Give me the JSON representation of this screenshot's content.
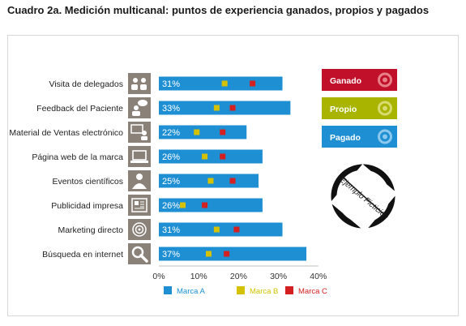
{
  "title": "Cuadro 2a. Medición multicanal: puntos de experiencia ganados, propios y pagados",
  "chart_data": {
    "type": "bar",
    "orientation": "horizontal",
    "categories": [
      "Visita de delegados",
      "Feedback del Paciente",
      "Material de Ventas electrónico",
      "Página web de la marca",
      "Eventos científicos",
      "Publicidad impresa",
      "Marketing directo",
      "Búsqueda en internet"
    ],
    "category_icons": [
      "people-icon",
      "speech-person-icon",
      "presenter-icon",
      "laptop-icon",
      "person-icon",
      "newspaper-icon",
      "target-icon",
      "magnifier-icon"
    ],
    "series": [
      {
        "name": "Marca A",
        "values": [
          31,
          33,
          22,
          26,
          25,
          26,
          31,
          37
        ],
        "color": "#1e8fd2"
      },
      {
        "name": "Marca B",
        "values": [
          16.5,
          14.5,
          9.5,
          11.5,
          13,
          6,
          14.5,
          12.5
        ],
        "color": "#d4c200"
      },
      {
        "name": "Marca C",
        "values": [
          23.5,
          18.5,
          16,
          16,
          18.5,
          11.5,
          19.5,
          17
        ],
        "color": "#d42020"
      }
    ],
    "value_labels": [
      "31%",
      "33%",
      "22%",
      "26%",
      "25%",
      "26%",
      "31%",
      "37%"
    ],
    "xticks": [
      "0%",
      "10%",
      "20%",
      "30%",
      "40%"
    ],
    "xlim": [
      0,
      40
    ],
    "legend_position": "bottom",
    "channels": [
      {
        "label": "Ganado",
        "color": "#c0102a",
        "ring": "#e88088"
      },
      {
        "label": "Propio",
        "color": "#a8b400",
        "ring": "#d8dc70"
      },
      {
        "label": "Pagado",
        "color": "#1e8fd2",
        "ring": "#8cc8ee"
      }
    ],
    "stamp": "Ejemplo Ficticio"
  }
}
